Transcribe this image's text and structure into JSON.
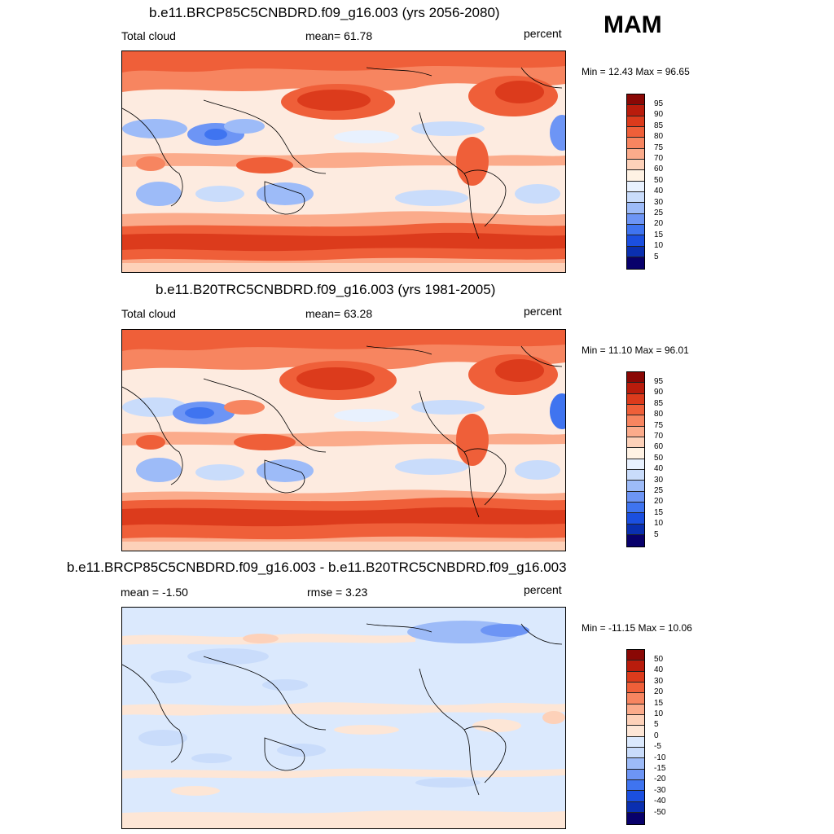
{
  "season": "MAM",
  "colors": {
    "abs_scale": [
      "#08006b",
      "#0a2fb0",
      "#1b4fe0",
      "#3f74f0",
      "#6d95f5",
      "#9dbbf8",
      "#c9dcfb",
      "#e8f1fe",
      "#fff2e4",
      "#fdd1b9",
      "#fbab8b",
      "#f78560",
      "#ef5f39",
      "#dc3b1c",
      "#b91c0c",
      "#8a0805"
    ],
    "diff_scale": [
      "#08006b",
      "#0a2fb0",
      "#1b4fe0",
      "#3f74f0",
      "#6d95f5",
      "#9dbbf8",
      "#c9dcfb",
      "#dbe9fd",
      "#fde6d6",
      "#fdd1b9",
      "#fbab8b",
      "#f78560",
      "#ef5f39",
      "#dc3b1c",
      "#b91c0c",
      "#8a0805"
    ]
  },
  "panels": [
    {
      "title": "b.e11.BRCP85C5CNBDRD.f09_g16.003 (yrs 2056-2080)",
      "left_label": "Total cloud",
      "center_label": "mean=  61.78",
      "units": "percent",
      "minmax": "Min =  12.43 Max =  96.65",
      "colorbar_labels": [
        "95",
        "90",
        "85",
        "80",
        "75",
        "70",
        "60",
        "50",
        "40",
        "30",
        "25",
        "20",
        "15",
        "10",
        "5"
      ],
      "map_type": "absolute"
    },
    {
      "title": "b.e11.B20TRC5CNBDRD.f09_g16.003 (yrs 1981-2005)",
      "left_label": "Total cloud",
      "center_label": "mean=  63.28",
      "units": "percent",
      "minmax": "Min =  11.10 Max =  96.01",
      "colorbar_labels": [
        "95",
        "90",
        "85",
        "80",
        "75",
        "70",
        "60",
        "50",
        "40",
        "30",
        "25",
        "20",
        "15",
        "10",
        "5"
      ],
      "map_type": "absolute"
    },
    {
      "title": "b.e11.BRCP85C5CNBDRD.f09_g16.003 - b.e11.B20TRC5CNBDRD.f09_g16.003",
      "left_label": "mean =  -1.50",
      "center_label": "rmse =   3.23",
      "units": "percent",
      "minmax": "Min = -11.15 Max =  10.06",
      "colorbar_labels": [
        "50",
        "40",
        "30",
        "20",
        "15",
        "10",
        "5",
        "0",
        "-5",
        "-10",
        "-15",
        "-20",
        "-30",
        "-40",
        "-50"
      ],
      "map_type": "difference"
    }
  ]
}
